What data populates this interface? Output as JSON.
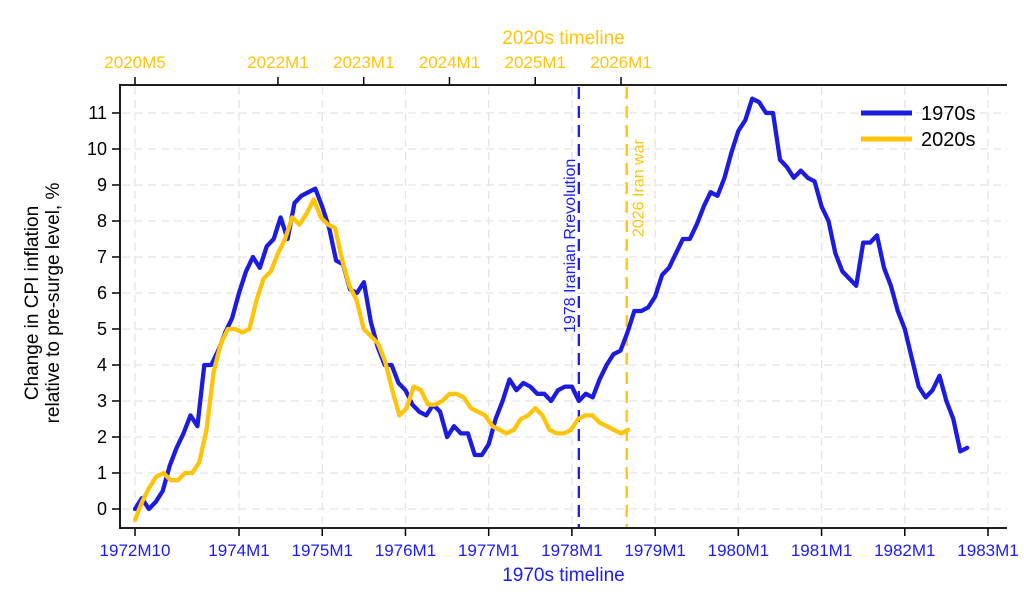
{
  "page": {
    "background": "#ffffff"
  },
  "chart_data": {
    "type": "line",
    "title_top": "2020s timeline",
    "title_bottom": "1970s timeline",
    "ylabel_line1": "Change in CPI inflation",
    "ylabel_line2": "relative to pre-surge level, %",
    "ylim": [
      -0.6,
      11.8
    ],
    "grid": {
      "color": "#e4e4e4",
      "dash": true,
      "legend_position": "top-right-inside"
    },
    "y_axis": {
      "ticks": [
        0,
        1,
        2,
        3,
        4,
        5,
        6,
        7,
        8,
        9,
        10,
        11
      ],
      "color": "#000000"
    },
    "x_axis_bottom": {
      "title": "1970s timeline",
      "color": "#1c1cf0",
      "ticks": [
        {
          "label": "1972M10",
          "month": 0
        },
        {
          "label": "1974M1",
          "month": 15
        },
        {
          "label": "1975M1",
          "month": 27
        },
        {
          "label": "1976M1",
          "month": 39
        },
        {
          "label": "1977M1",
          "month": 51
        },
        {
          "label": "1978M1",
          "month": 63
        },
        {
          "label": "1979M1",
          "month": 75
        },
        {
          "label": "1980M1",
          "month": 87
        },
        {
          "label": "1981M1",
          "month": 99
        },
        {
          "label": "1982M1",
          "month": 111
        },
        {
          "label": "1983M1",
          "month": 123
        }
      ]
    },
    "x_axis_top": {
      "title": "2020s timeline",
      "color": "#ffc40a",
      "ticks": [
        {
          "label": "2020M5",
          "month": 0
        },
        {
          "label": "2022M1",
          "month": 20
        },
        {
          "label": "2023M1",
          "month": 32
        },
        {
          "label": "2024M1",
          "month": 44
        },
        {
          "label": "2025M1",
          "month": 56
        },
        {
          "label": "2026M1",
          "month": 68
        }
      ]
    },
    "series": [
      {
        "name": "1970s",
        "color": "#1c1ce0",
        "axis": "bottom",
        "start_label": "1972M10",
        "values": [
          0.0,
          0.3,
          0.0,
          0.2,
          0.5,
          1.2,
          1.7,
          2.1,
          2.6,
          2.3,
          4.0,
          4.0,
          4.4,
          4.9,
          5.3,
          6.0,
          6.6,
          7.0,
          6.7,
          7.3,
          7.5,
          8.1,
          7.5,
          8.5,
          8.7,
          8.8,
          8.9,
          8.4,
          7.8,
          6.9,
          6.8,
          6.1,
          6.0,
          6.3,
          5.2,
          4.5,
          4.0,
          4.0,
          3.5,
          3.3,
          2.9,
          2.7,
          2.6,
          2.9,
          2.7,
          2.0,
          2.3,
          2.1,
          2.1,
          1.5,
          1.5,
          1.8,
          2.5,
          3.0,
          3.6,
          3.3,
          3.5,
          3.4,
          3.2,
          3.2,
          3.0,
          3.3,
          3.4,
          3.4,
          3.0,
          3.2,
          3.1,
          3.6,
          4.0,
          4.3,
          4.4,
          4.9,
          5.5,
          5.5,
          5.6,
          5.9,
          6.5,
          6.7,
          7.1,
          7.5,
          7.5,
          7.9,
          8.4,
          8.8,
          8.7,
          9.2,
          9.9,
          10.5,
          10.8,
          11.4,
          11.3,
          11.0,
          11.0,
          9.7,
          9.5,
          9.2,
          9.4,
          9.2,
          9.1,
          8.4,
          8.0,
          7.1,
          6.6,
          6.4,
          6.2,
          7.4,
          7.4,
          7.6,
          6.7,
          6.2,
          5.5,
          5.0,
          4.2,
          3.4,
          3.1,
          3.3,
          3.7,
          3.0,
          2.5,
          1.6,
          1.7
        ]
      },
      {
        "name": "2020s",
        "color": "#ffc40a",
        "axis": "top",
        "start_label": "2020M5",
        "values": [
          -0.3,
          0.2,
          0.6,
          0.9,
          1.0,
          0.8,
          0.8,
          1.0,
          1.0,
          1.3,
          2.2,
          3.8,
          4.6,
          5.0,
          5.0,
          4.9,
          5.0,
          5.8,
          6.4,
          6.6,
          7.1,
          7.5,
          8.1,
          7.9,
          8.2,
          8.6,
          8.1,
          7.9,
          7.8,
          6.9,
          6.2,
          5.8,
          5.0,
          4.8,
          4.6,
          4.1,
          3.3,
          2.6,
          2.8,
          3.4,
          3.3,
          2.9,
          2.9,
          3.0,
          3.2,
          3.2,
          3.1,
          2.8,
          2.7,
          2.6,
          2.3,
          2.2,
          2.1,
          2.2,
          2.5,
          2.6,
          2.8,
          2.6,
          2.2,
          2.1,
          2.1,
          2.2,
          2.5,
          2.6,
          2.6,
          2.4,
          2.3,
          2.2,
          2.1,
          2.2
        ]
      }
    ],
    "annotations": [
      {
        "text": "1978 Iranian Rrevolution",
        "color": "#1c1cf0",
        "axis": "bottom",
        "month": 64,
        "label_side": "left"
      },
      {
        "text": "2026 Iran war",
        "color": "#ffc40a",
        "axis": "top",
        "month": 68.8,
        "label_side": "right"
      }
    ],
    "legend": {
      "entries": [
        {
          "label": "1970s",
          "color": "#1c1ce0"
        },
        {
          "label": "2020s",
          "color": "#ffc40a"
        }
      ]
    }
  }
}
